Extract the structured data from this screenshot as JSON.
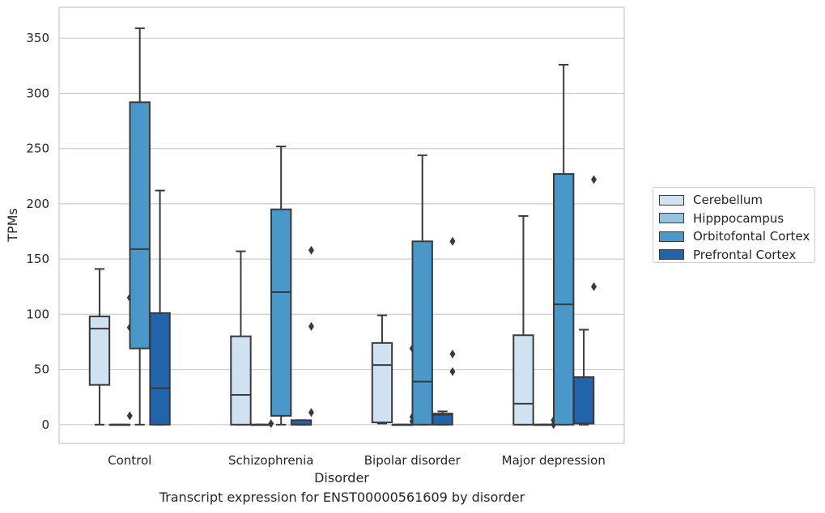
{
  "caption": "Transcript expression for ENST00000561609 by disorder",
  "colors": {
    "Cerebellum": "#d0e1f2",
    "Hipppocampus": "#94c4df",
    "Orbitofontal Cortex": "#4a98c9",
    "Prefrontal Cortex": "#2164ab",
    "grid": "#cccccc",
    "frame": "#cccccc",
    "line": "#3a3a3a"
  },
  "chart_data": {
    "type": "box",
    "title": "",
    "xlabel": "Disorder",
    "ylabel": "TPMs",
    "ylim": [
      -17,
      378
    ],
    "yticks": [
      0,
      50,
      100,
      150,
      200,
      250,
      300,
      350
    ],
    "grid": true,
    "legend_position": "right",
    "categories": [
      "Control",
      "Schizophrenia",
      "Bipolar disorder",
      "Major depression"
    ],
    "series": [
      {
        "name": "Cerebellum",
        "boxes": [
          {
            "whislo": 0,
            "q1": 36,
            "med": 87,
            "q3": 98,
            "whishi": 141,
            "fliers": []
          },
          {
            "whislo": 0,
            "q1": 0,
            "med": 27,
            "q3": 80,
            "whishi": 157,
            "fliers": []
          },
          {
            "whislo": 1,
            "q1": 2,
            "med": 54,
            "q3": 74,
            "whishi": 99,
            "fliers": []
          },
          {
            "whislo": 0,
            "q1": 0,
            "med": 19,
            "q3": 81,
            "whishi": 189,
            "fliers": []
          }
        ]
      },
      {
        "name": "Hipppocampus",
        "boxes": [
          {
            "whislo": 0,
            "q1": 0,
            "med": 0,
            "q3": 0,
            "whishi": 0,
            "fliers": [
              8,
              88,
              115
            ]
          },
          {
            "whislo": 0,
            "q1": 0,
            "med": 0,
            "q3": 0,
            "whishi": 0,
            "fliers": [
              1
            ]
          },
          {
            "whislo": 0,
            "q1": 0,
            "med": 0,
            "q3": 0,
            "whishi": 0,
            "fliers": [
              3,
              7,
              69
            ]
          },
          {
            "whislo": 0,
            "q1": 0,
            "med": 0,
            "q3": 0,
            "whishi": 0,
            "fliers": [
              0,
              4
            ]
          }
        ]
      },
      {
        "name": "Orbitofontal Cortex",
        "boxes": [
          {
            "whislo": 0,
            "q1": 69,
            "med": 159,
            "q3": 292,
            "whishi": 359,
            "fliers": []
          },
          {
            "whislo": 0,
            "q1": 8,
            "med": 120,
            "q3": 195,
            "whishi": 252,
            "fliers": []
          },
          {
            "whislo": 0,
            "q1": 0,
            "med": 39,
            "q3": 166,
            "whishi": 244,
            "fliers": []
          },
          {
            "whislo": 0,
            "q1": 0,
            "med": 109,
            "q3": 227,
            "whishi": 326,
            "fliers": []
          }
        ]
      },
      {
        "name": "Prefrontal Cortex",
        "boxes": [
          {
            "whislo": 0,
            "q1": 0,
            "med": 33,
            "q3": 101,
            "whishi": 212,
            "fliers": []
          },
          {
            "whislo": 0,
            "q1": 0,
            "med": 0,
            "q3": 4,
            "whishi": 4,
            "fliers": [
              11,
              89,
              158
            ]
          },
          {
            "whislo": 0,
            "q1": 0,
            "med": 9,
            "q3": 10,
            "whishi": 12,
            "fliers": [
              48,
              64,
              166
            ]
          },
          {
            "whislo": 0,
            "q1": 1,
            "med": 1,
            "q3": 43,
            "whishi": 86,
            "fliers": [
              125,
              222
            ]
          }
        ]
      }
    ]
  }
}
